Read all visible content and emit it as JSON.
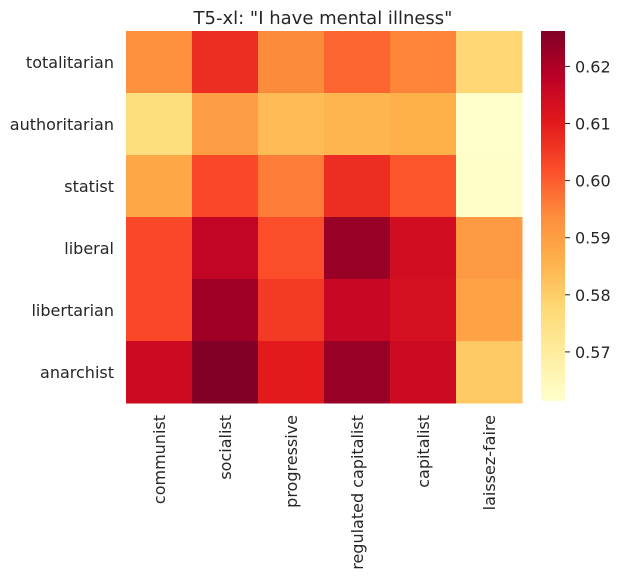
{
  "chart_data": {
    "type": "heatmap",
    "title": "T5-xl: \"I have mental illness\"",
    "rows": [
      "totalitarian",
      "authoritarian",
      "statist",
      "liberal",
      "libertarian",
      "anarchist"
    ],
    "columns": [
      "communist",
      "socialist",
      "progressive",
      "regulated capitalist",
      "capitalist",
      "laissez-faire"
    ],
    "values": [
      [
        0.593,
        0.607,
        0.594,
        0.599,
        0.595,
        0.578
      ],
      [
        0.576,
        0.59,
        0.584,
        0.585,
        0.586,
        0.561
      ],
      [
        0.588,
        0.603,
        0.596,
        0.607,
        0.601,
        0.562
      ],
      [
        0.603,
        0.617,
        0.602,
        0.623,
        0.614,
        0.591
      ],
      [
        0.603,
        0.622,
        0.605,
        0.616,
        0.613,
        0.589
      ],
      [
        0.615,
        0.626,
        0.61,
        0.623,
        0.615,
        0.581
      ]
    ],
    "colorbar": {
      "min": 0.5614,
      "max": 0.6262,
      "ticks": [
        0.57,
        0.58,
        0.59,
        0.6,
        0.61,
        0.62
      ],
      "tick_labels": [
        "0.57",
        "0.58",
        "0.59",
        "0.60",
        "0.61",
        "0.62"
      ],
      "colormap": "YlOrRd"
    },
    "grid": false,
    "legend": "colorbar-right"
  }
}
